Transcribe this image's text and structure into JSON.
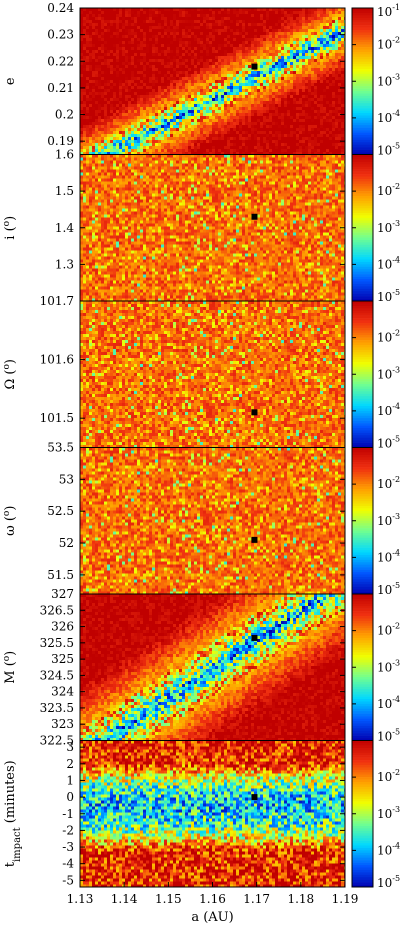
{
  "chart_data": {
    "type": "heatmap",
    "xlabel": "a (AU)",
    "xlim": [
      1.13,
      1.19
    ],
    "xticks": [
      "1.13",
      "1.14",
      "1.15",
      "1.16",
      "1.17",
      "1.18",
      "1.19"
    ],
    "marker_x": 1.1695,
    "colorbar": {
      "scale": "log",
      "range": [
        1e-05,
        0.1
      ],
      "top_label": {
        "base": "10",
        "exp": "-1"
      },
      "next_label": {
        "base": "10",
        "exp": "-2"
      },
      "repeat_labels": [
        {
          "base": "10",
          "exp": "-2"
        },
        {
          "base": "10",
          "exp": "-3"
        },
        {
          "base": "10",
          "exp": "-4"
        },
        {
          "base": "10",
          "exp": "-5"
        }
      ],
      "colors": [
        "#0000b0",
        "#0058ff",
        "#00d8ff",
        "#70ff90",
        "#f0ff00",
        "#ffa000",
        "#f03010",
        "#c00000"
      ]
    },
    "panels": [
      {
        "id": "e",
        "ylabel": {
          "base": "e",
          "sup": "",
          "rest": ""
        },
        "ylim": [
          0.185,
          0.24
        ],
        "yticks": [
          {
            "v": 0.19,
            "t": "0.19"
          },
          {
            "v": 0.2,
            "t": "0.2"
          },
          {
            "v": 0.21,
            "t": "0.21"
          },
          {
            "v": 0.22,
            "t": "0.22"
          },
          {
            "v": 0.23,
            "t": "0.23"
          },
          {
            "v": 0.24,
            "t": "0.24"
          }
        ],
        "marker_y": 0.218,
        "pattern": "band",
        "band": {
          "y0": 0.18,
          "y1": 0.232,
          "width": 0.004
        },
        "cbar_top": {
          "base": "10",
          "exp": "-1"
        }
      },
      {
        "id": "i",
        "ylabel": {
          "base": "i (",
          "sup": "o",
          "rest": ")"
        },
        "ylim": [
          1.2,
          1.6
        ],
        "yticks": [
          {
            "v": 1.3,
            "t": "1.3"
          },
          {
            "v": 1.4,
            "t": "1.4"
          },
          {
            "v": 1.5,
            "t": "1.5"
          },
          {
            "v": 1.6,
            "t": "1.6"
          }
        ],
        "marker_y": 1.43,
        "pattern": "noise"
      },
      {
        "id": "Omega",
        "ylabel": {
          "base": "Ω (",
          "sup": "o",
          "rest": ")"
        },
        "ylim": [
          101.45,
          101.7
        ],
        "yticks": [
          {
            "v": 101.5,
            "t": "101.5"
          },
          {
            "v": 101.6,
            "t": "101.6"
          },
          {
            "v": 101.7,
            "t": "101.7"
          }
        ],
        "marker_y": 101.51,
        "pattern": "noise"
      },
      {
        "id": "omega",
        "ylabel": {
          "base": "ω (",
          "sup": "o",
          "rest": ")"
        },
        "ylim": [
          51.2,
          53.5
        ],
        "yticks": [
          {
            "v": 51.5,
            "t": "51.5"
          },
          {
            "v": 52,
            "t": "52"
          },
          {
            "v": 52.5,
            "t": "52.5"
          },
          {
            "v": 53,
            "t": "53"
          },
          {
            "v": 53.5,
            "t": "53.5"
          }
        ],
        "marker_y": 52.05,
        "pattern": "noise"
      },
      {
        "id": "M",
        "ylabel": {
          "base": "M (",
          "sup": "o",
          "rest": ")"
        },
        "ylim": [
          322.5,
          327
        ],
        "yticks": [
          {
            "v": 322.5,
            "t": "322.5"
          },
          {
            "v": 323,
            "t": "323"
          },
          {
            "v": 323.5,
            "t": "323.5"
          },
          {
            "v": 324,
            "t": "324"
          },
          {
            "v": 324.5,
            "t": "324.5"
          },
          {
            "v": 325,
            "t": "325"
          },
          {
            "v": 325.5,
            "t": "325.5"
          },
          {
            "v": 326,
            "t": "326"
          },
          {
            "v": 326.5,
            "t": "326.5"
          },
          {
            "v": 327,
            "t": "327"
          }
        ],
        "marker_y": 325.65,
        "pattern": "band",
        "band": {
          "y0": 322.0,
          "y1": 327.4,
          "width": 0.55
        }
      },
      {
        "id": "t",
        "ylabel": {
          "base": "t",
          "sub": "impact",
          "rest": " (minutes)"
        },
        "ylim": [
          -5.4,
          3.4
        ],
        "yticks": [
          {
            "v": -5,
            "t": "-5"
          },
          {
            "v": -4,
            "t": "-4"
          },
          {
            "v": -3,
            "t": "-3"
          },
          {
            "v": -2,
            "t": "-2"
          },
          {
            "v": -1,
            "t": "-1"
          },
          {
            "v": 0,
            "t": "0"
          },
          {
            "v": 1,
            "t": "1"
          },
          {
            "v": 2,
            "t": "2"
          },
          {
            "v": 3,
            "t": "3"
          }
        ],
        "marker_y": 0.0,
        "pattern": "valley",
        "valley": {
          "center": -0.6,
          "width": 2.6
        }
      }
    ]
  }
}
